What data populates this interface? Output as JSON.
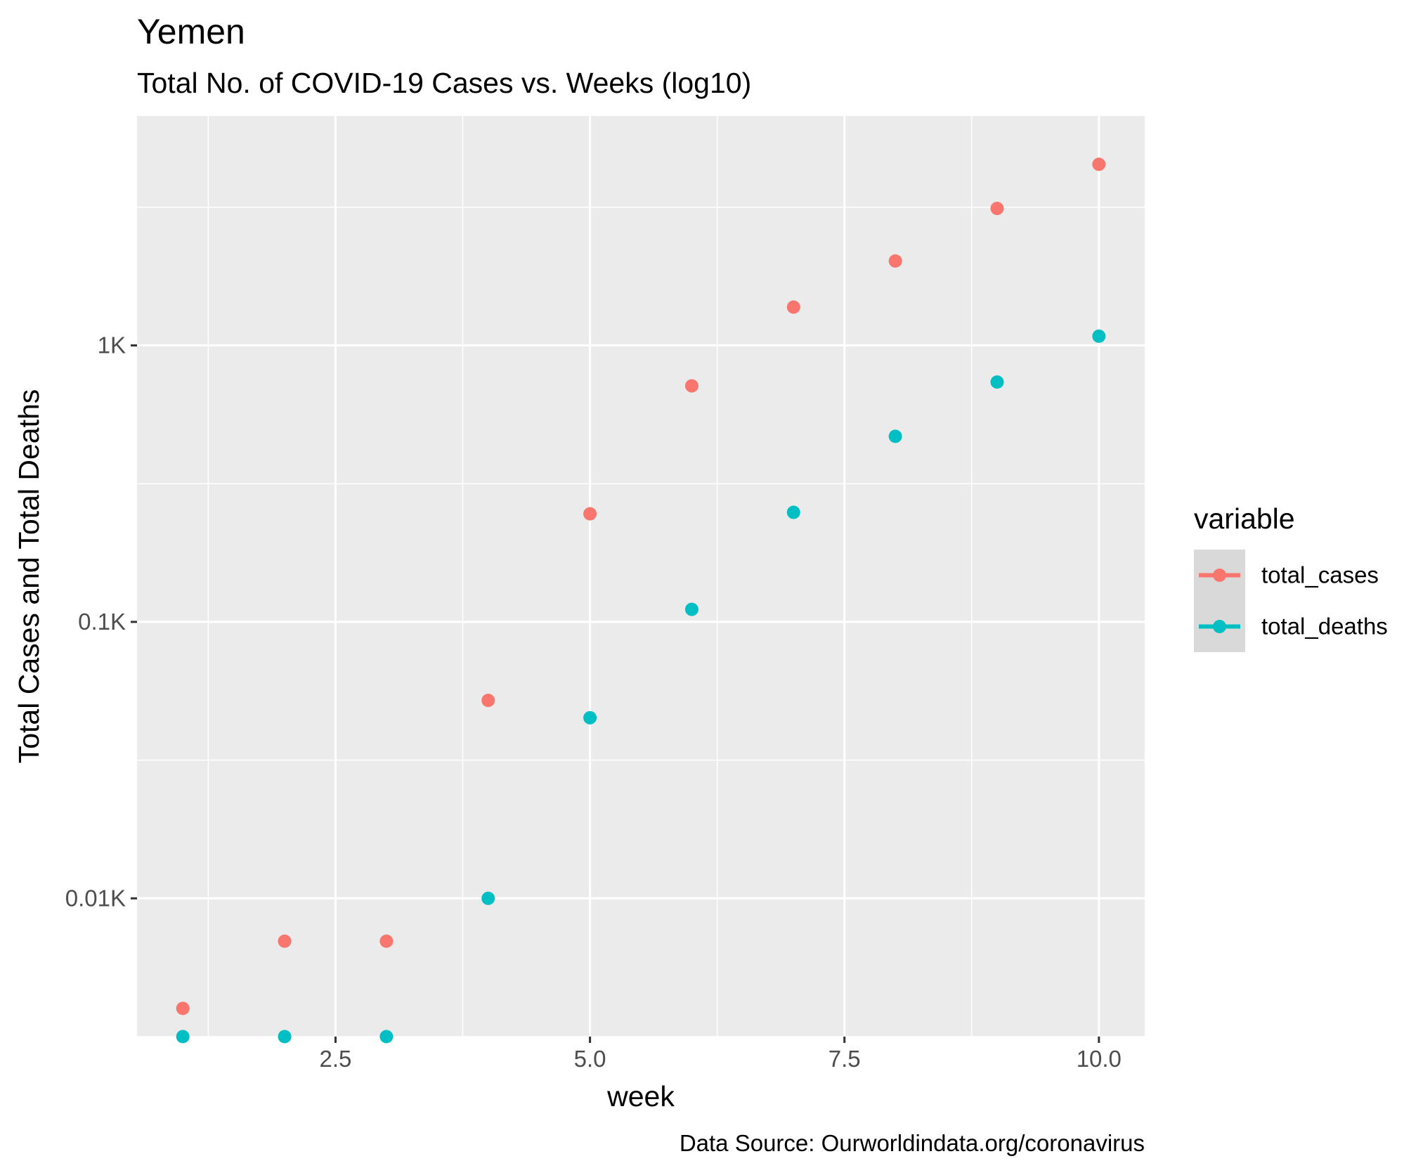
{
  "chart_data": {
    "type": "scatter",
    "title": "Yemen",
    "subtitle": "Total No. of COVID-19 Cases vs. Weeks (log10)",
    "xlabel": "week",
    "ylabel": "Total Cases and Total Deaths",
    "caption": "Data Source: Ourworldindata.org/coronavirus",
    "x_scale": "linear",
    "y_scale": "log10",
    "xlim": [
      0.55,
      10.45
    ],
    "ylim_log10": [
      0.5,
      3.83
    ],
    "x_ticks": [
      {
        "value": 2.5,
        "label": "2.5"
      },
      {
        "value": 5.0,
        "label": "5.0"
      },
      {
        "value": 7.5,
        "label": "7.5"
      },
      {
        "value": 10.0,
        "label": "10.0"
      }
    ],
    "y_ticks": [
      {
        "value": 10,
        "label": "0.01K"
      },
      {
        "value": 100,
        "label": "0.1K"
      },
      {
        "value": 1000,
        "label": "1K"
      }
    ],
    "grid": true,
    "legend": {
      "title": "variable",
      "position": "right"
    },
    "series": [
      {
        "name": "total_cases",
        "color": "#F8766D",
        "x": [
          1,
          2,
          3,
          4,
          5,
          6,
          7,
          8,
          9,
          10
        ],
        "y": [
          4,
          7,
          7,
          52,
          246,
          714,
          1376,
          2020,
          3130,
          4520
        ]
      },
      {
        "name": "total_deaths",
        "color": "#00BFC4",
        "x": [
          1,
          2,
          3,
          4,
          5,
          6,
          7,
          8,
          9,
          10
        ],
        "y": [
          3,
          3,
          3,
          10,
          45,
          111,
          249,
          469,
          737,
          1080
        ]
      }
    ]
  }
}
